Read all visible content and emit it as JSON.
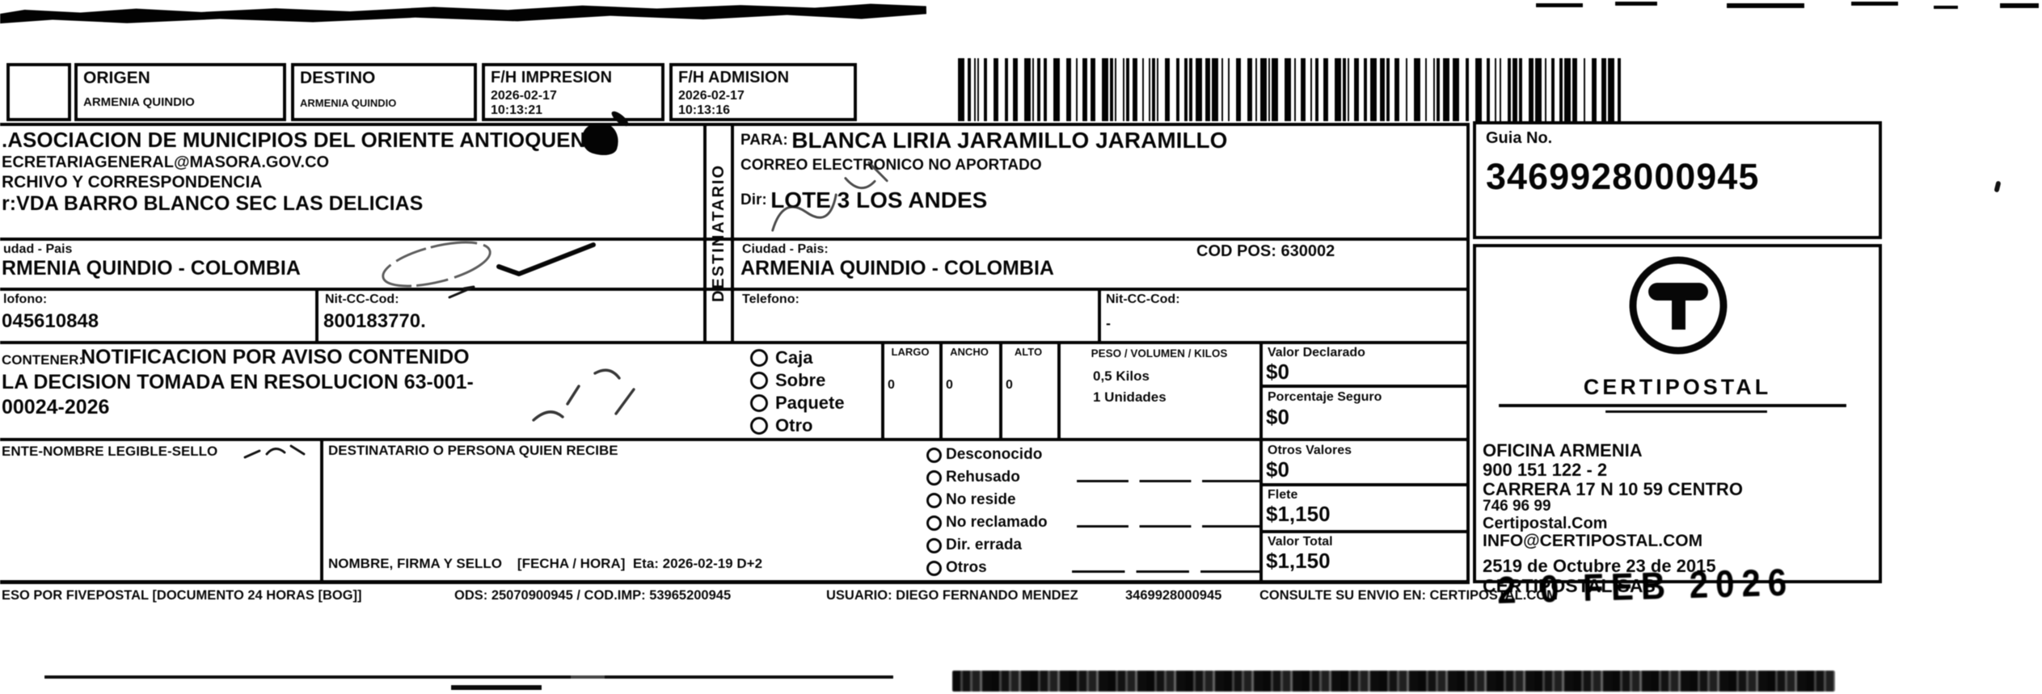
{
  "header": {
    "origen_label": "ORIGEN",
    "origen_value": "ARMENIA QUINDIO",
    "destino_label": "DESTINO",
    "destino_value": "ARMENIA QUINDIO",
    "impresion_label": "F/H IMPRESION",
    "impresion_date": "2026-02-17",
    "impresion_time": "10:13:21",
    "admision_label": "F/H ADMISION",
    "admision_date": "2026-02-17",
    "admision_time": "10:13:16"
  },
  "barcode": {
    "value": "3469928000945"
  },
  "sender": {
    "name": ".ASOCIACION DE MUNICIPIOS DEL ORIENTE ANTIOQUENO",
    "email": "ECRETARIAGENERAL@MASORA.GOV.CO",
    "dept": "RCHIVO Y CORRESPONDENCIA",
    "address": "r:VDA BARRO BLANCO SEC LAS DELICIAS",
    "city_label": "udad - Pais",
    "city": "RMENIA QUINDIO - COLOMBIA",
    "phone_label": "lofono:",
    "phone": "045610848",
    "nit_label": "Nit-CC-Cod:",
    "nit": "800183770.",
    "content_label": "CONTENER:",
    "content_line1": "NOTIFICACION POR AVISO CONTENIDO",
    "content_line2": "LA DECISION TOMADA EN RESOLUCION 63-001-",
    "content_line3": "00024-2026",
    "signature_label": "ENTE-NOMBRE LEGIBLE-SELLO"
  },
  "recipient": {
    "strip": "DESTINATARIO",
    "para_label": "PARA:",
    "name": "BLANCA LIRIA JARAMILLO JARAMILLO",
    "email": "CORREO ELECTRONICO NO APORTADO",
    "dir_label": "Dir:",
    "address": "LOTE 3 LOS ANDES",
    "city_label": "Ciudad - Pais:",
    "city": "ARMENIA QUINDIO - COLOMBIA",
    "codpos": "COD POS: 630002",
    "phone_label": "Telefono:",
    "phone": "",
    "nit_label": "Nit-CC-Cod:",
    "nit": "-"
  },
  "package": {
    "types": [
      "Caja",
      "Sobre",
      "Paquete",
      "Otro"
    ],
    "dims": [
      {
        "label": "LARGO",
        "value": "0"
      },
      {
        "label": "ANCHO",
        "value": "0"
      },
      {
        "label": "ALTO",
        "value": "0"
      }
    ],
    "peso_label": "PESO / VOLUMEN / KILOS",
    "peso_line1": "0,5 Kilos",
    "peso_line2": "1 Unidades"
  },
  "values": [
    {
      "label": "Valor Declarado",
      "value": "$0"
    },
    {
      "label": "Porcentaje Seguro",
      "value": "$0"
    },
    {
      "label": "Otros Valores",
      "value": "$0"
    },
    {
      "label": "Flete",
      "value": "$1,150"
    },
    {
      "label": "Valor Total",
      "value": "$1,150"
    }
  ],
  "delivery": {
    "receiver_label": "DESTINATARIO O PERSONA QUIEN RECIBE",
    "statuses": [
      "Desconocido",
      "Rehusado",
      "No reside",
      "No reclamado",
      "Dir. errada",
      "Otros"
    ],
    "signature_line": "NOMBRE, FIRMA Y SELLO    [FECHA / HORA]  Eta: 2026-02-19 D+2"
  },
  "guia": {
    "label": "Guia No.",
    "number": "3469928000945"
  },
  "office": {
    "brand": "CERTIPOSTAL",
    "lines": [
      "OFICINA ARMENIA",
      "900 151 122 - 2",
      "CARRERA 17 N 10 59 CENTRO",
      "746 96 99",
      "Certipostal.Com",
      "INFO@CERTIPOSTAL.COM",
      "2519 de Octubre 23 de 2015",
      "CERTIPOSTAL SAS"
    ]
  },
  "footer": {
    "left": "ESO POR FIVEPOSTAL [DOCUMENTO 24 HORAS [BOG]]",
    "ods": "ODS: 25070900945 / COD.IMP: 53965200945",
    "user": "USUARIO: DIEGO FERNANDO MENDEZ",
    "guide": "3469928000945",
    "consult": "CONSULTE SU ENVIO EN: CERTIPOSTAL.COM"
  },
  "scan": {
    "stamp": "2 0 FEB 2026"
  }
}
